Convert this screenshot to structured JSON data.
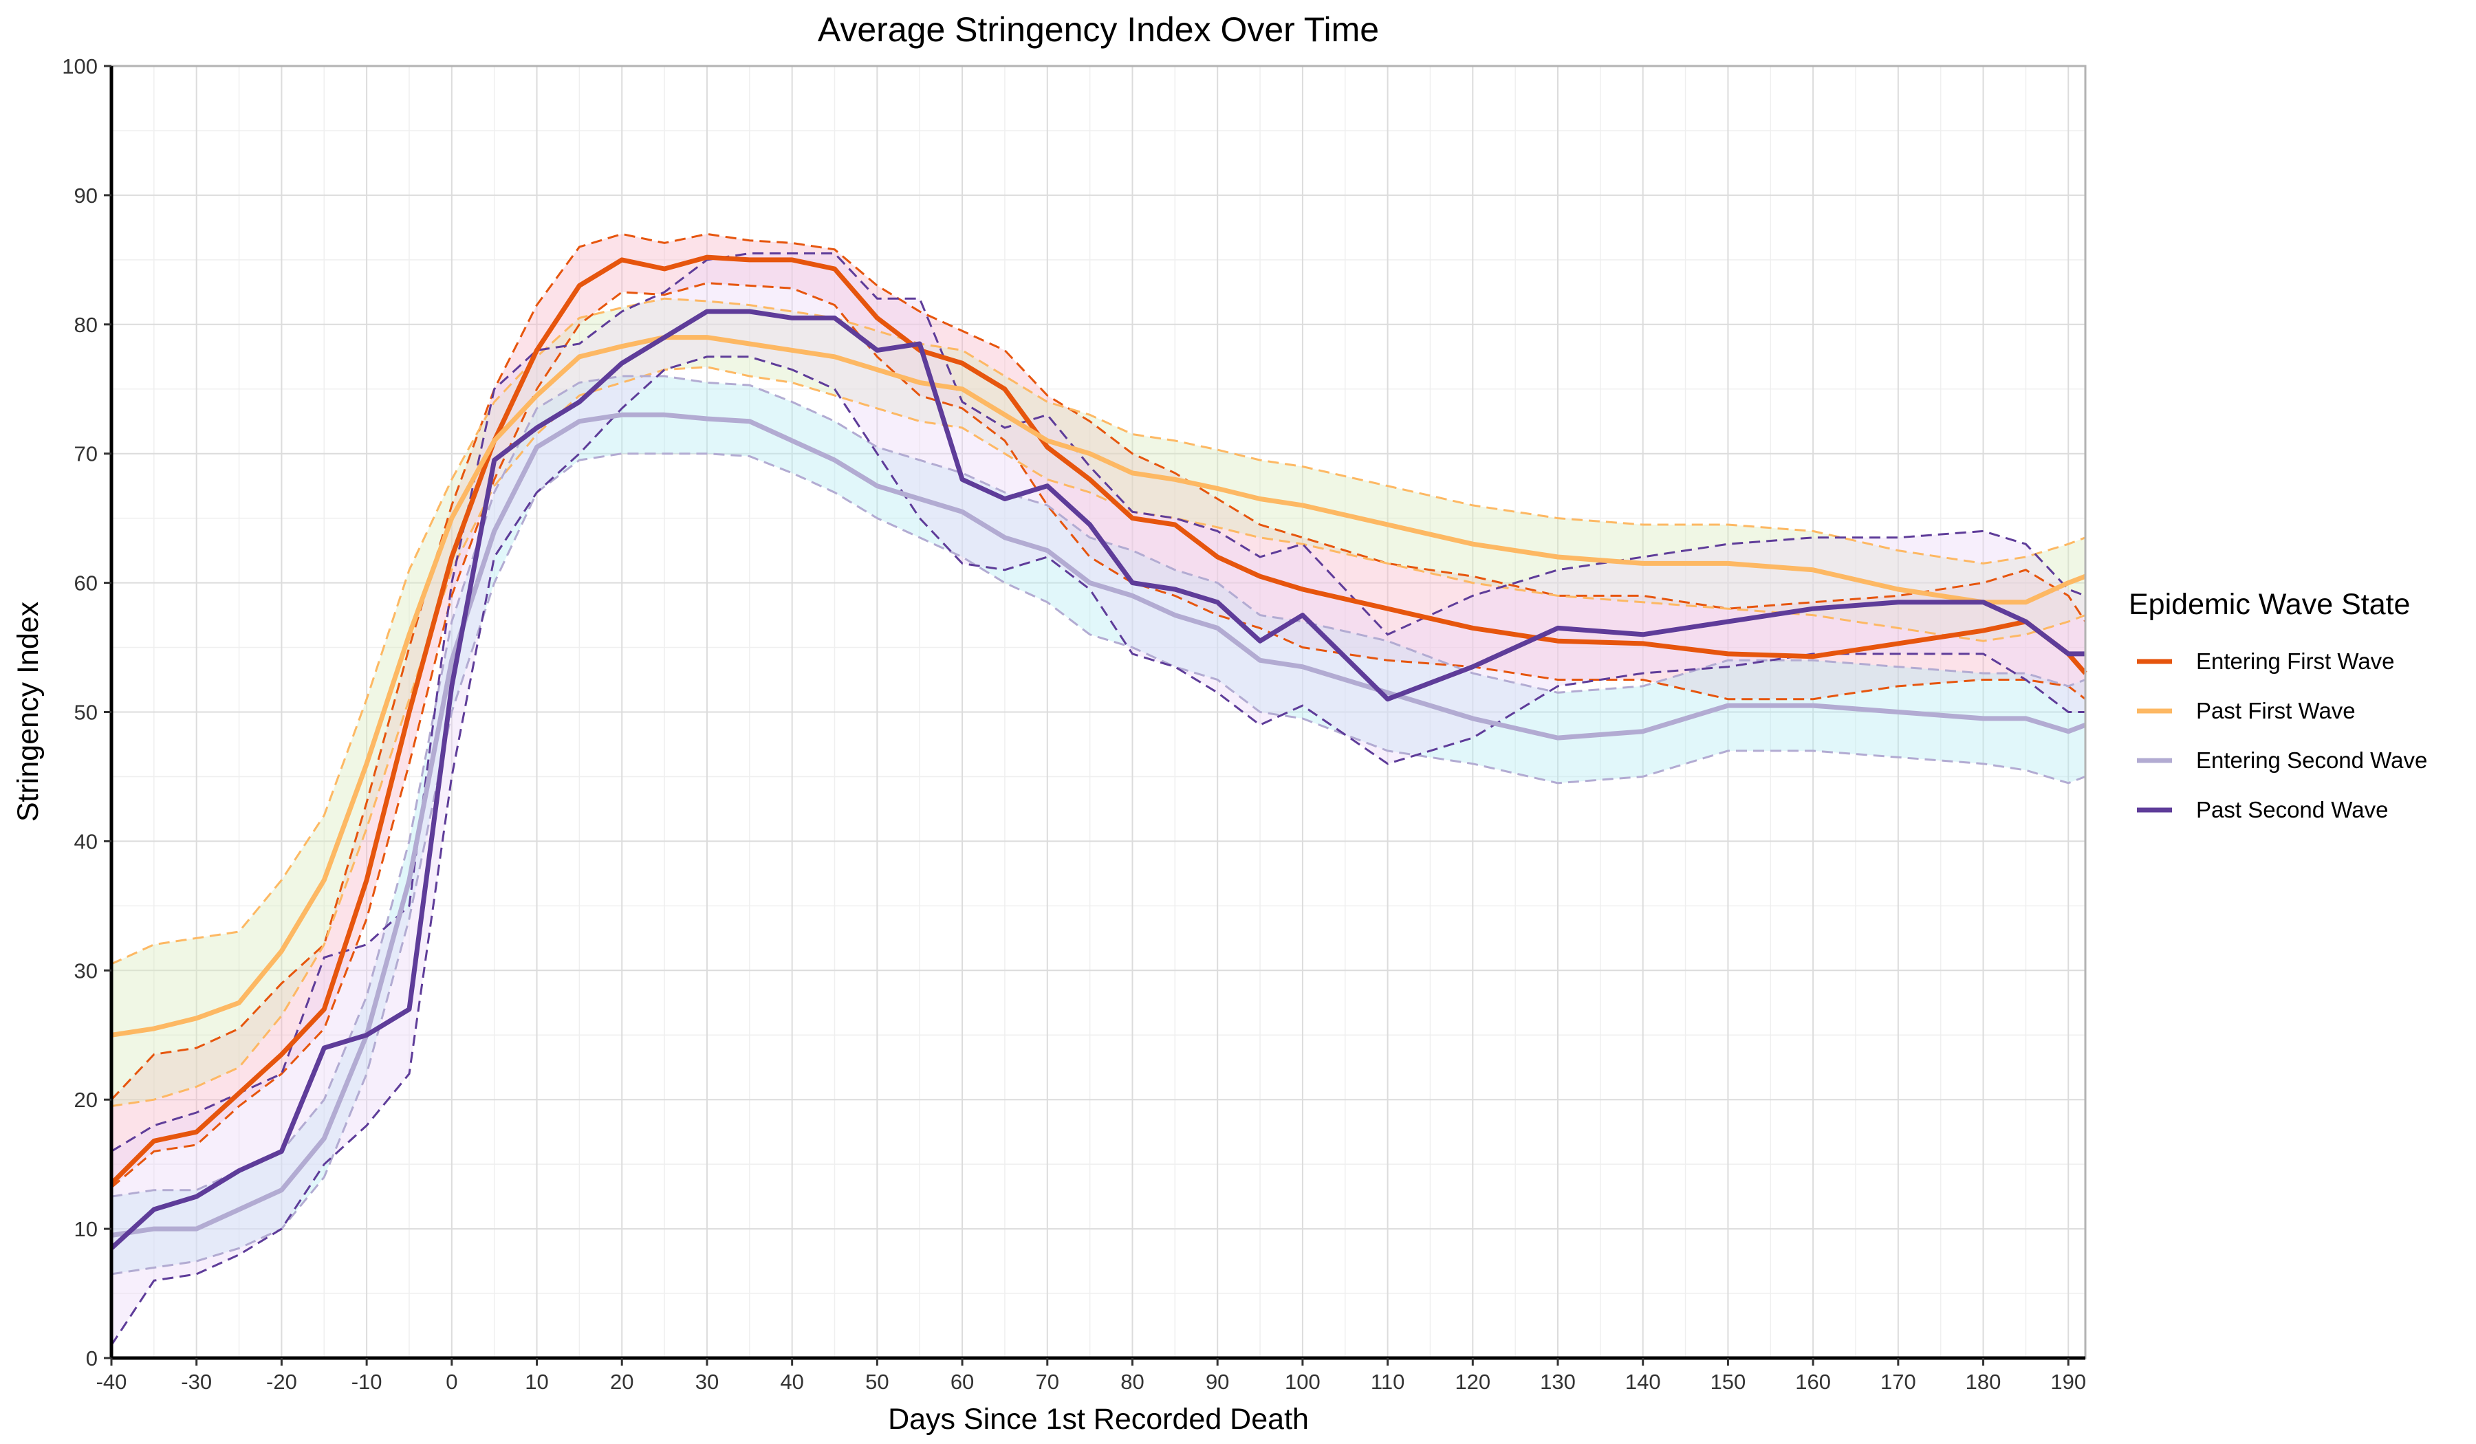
{
  "chart_data": {
    "type": "line",
    "title": "Average Stringency Index Over Time",
    "xlabel": "Days Since 1st Recorded Death",
    "ylabel": "Stringency Index",
    "xlim": [
      -40,
      192
    ],
    "ylim": [
      0,
      100
    ],
    "x_ticks": [
      -40,
      -30,
      -20,
      -10,
      0,
      10,
      20,
      30,
      40,
      50,
      60,
      70,
      80,
      90,
      100,
      110,
      120,
      130,
      140,
      150,
      160,
      170,
      180,
      190
    ],
    "y_ticks": [
      0,
      10,
      20,
      30,
      40,
      50,
      60,
      70,
      80,
      90,
      100
    ],
    "grid": true,
    "legend": {
      "title": "Epidemic Wave State",
      "position": "right"
    },
    "x": [
      -40,
      -35,
      -30,
      -25,
      -20,
      -15,
      -10,
      -5,
      0,
      5,
      10,
      15,
      20,
      25,
      30,
      35,
      40,
      45,
      50,
      55,
      60,
      65,
      70,
      75,
      80,
      85,
      90,
      95,
      100,
      110,
      120,
      130,
      140,
      150,
      160,
      170,
      180,
      185,
      190,
      192
    ],
    "series": [
      {
        "name": "Entering First Wave",
        "color": "#e6550d",
        "band_color": "#f8b7c8",
        "values": [
          13.5,
          16.8,
          17.5,
          20.5,
          23.5,
          27,
          37,
          50,
          62,
          71,
          78,
          83,
          85,
          84.3,
          85.2,
          85,
          85,
          84.3,
          80.5,
          78,
          77,
          75,
          70.5,
          68,
          65,
          64.5,
          62,
          60.5,
          59.5,
          58,
          56.5,
          55.5,
          55.3,
          54.5,
          54.3,
          55.3,
          56.3,
          57,
          54.5,
          53
        ],
        "lower": [
          13.2,
          16,
          16.5,
          19.5,
          22,
          25.5,
          34,
          46,
          59,
          68,
          75,
          80,
          82.5,
          82.3,
          83.2,
          83,
          82.8,
          81.5,
          77.5,
          74.5,
          73.5,
          71,
          66,
          62,
          60,
          59,
          57.5,
          56.5,
          55,
          54,
          53.5,
          52.5,
          52.5,
          51,
          51,
          52,
          52.5,
          52.5,
          52,
          51
        ],
        "upper": [
          20,
          23.5,
          24,
          25.5,
          29,
          32,
          43,
          55,
          66,
          75,
          81.5,
          86,
          87,
          86.3,
          87,
          86.5,
          86.3,
          85.8,
          83,
          81,
          79.5,
          78,
          74.5,
          72.5,
          70,
          68.5,
          66.5,
          64.5,
          63.5,
          61.5,
          60.5,
          59,
          59,
          58,
          58.5,
          59,
          60,
          61,
          59,
          57
        ]
      },
      {
        "name": "Past First Wave",
        "color": "#fdb863",
        "band_color": "#d9ebbd",
        "values": [
          25,
          25.5,
          26.3,
          27.5,
          31.5,
          37,
          46,
          56,
          65,
          71,
          74.5,
          77.5,
          78.3,
          79,
          79,
          78.5,
          78,
          77.5,
          76.5,
          75.5,
          75,
          73,
          71,
          70,
          68.5,
          68,
          67.3,
          66.5,
          66,
          64.5,
          63,
          62,
          61.5,
          61.5,
          61,
          59.5,
          58.5,
          58.5,
          60,
          60.5
        ],
        "lower": [
          19.5,
          20,
          21,
          22.5,
          26.5,
          32,
          41,
          51,
          61,
          67.5,
          71.5,
          74.5,
          75.5,
          76.5,
          76.7,
          76,
          75.5,
          74.5,
          73.5,
          72.5,
          72,
          70,
          68,
          67,
          65.5,
          65,
          64.3,
          63.5,
          63,
          61.5,
          60,
          59,
          58.5,
          58,
          57.5,
          56.5,
          55.5,
          56,
          57,
          57.5
        ],
        "upper": [
          30.5,
          32,
          32.5,
          33,
          37,
          42,
          51,
          61,
          68,
          74,
          77.5,
          80.5,
          81.3,
          82,
          81.8,
          81.5,
          81,
          80.5,
          79.5,
          78.5,
          78,
          76,
          74,
          73,
          71.5,
          71,
          70.3,
          69.5,
          69,
          67.5,
          66,
          65,
          64.5,
          64.5,
          64,
          62.5,
          61.5,
          62,
          63,
          63.5
        ]
      },
      {
        "name": "Entering Second Wave",
        "color": "#b2abd2",
        "band_color": "#b3ecf2",
        "values": [
          9.5,
          10,
          10,
          11.5,
          13,
          17,
          25,
          37,
          54,
          64,
          70.5,
          72.5,
          73,
          73,
          72.7,
          72.5,
          71,
          69.5,
          67.5,
          66.5,
          65.5,
          63.5,
          62.5,
          60,
          59,
          57.5,
          56.5,
          54,
          53.5,
          51.5,
          49.5,
          48,
          48.5,
          50.5,
          50.5,
          50,
          49.5,
          49.5,
          48.5,
          49
        ],
        "lower": [
          6.5,
          7,
          7.5,
          8.5,
          10,
          14,
          22,
          34,
          50,
          60,
          67,
          69.5,
          70,
          70,
          70,
          69.8,
          68.5,
          67,
          65,
          63.5,
          62,
          60,
          58.5,
          56,
          55,
          53.5,
          52.5,
          50,
          49.5,
          47,
          46,
          44.5,
          45,
          47,
          47,
          46.5,
          46,
          45.5,
          44.5,
          45
        ],
        "upper": [
          12.5,
          13,
          13,
          14.5,
          16,
          20,
          28,
          40,
          57,
          67,
          73.5,
          75.5,
          76,
          76,
          75.5,
          75.3,
          74,
          72.5,
          70.5,
          69.5,
          68.5,
          67,
          66,
          63.5,
          62.5,
          61,
          60,
          57.5,
          57,
          55.5,
          53,
          51.5,
          52,
          54,
          54,
          53.5,
          53,
          53,
          52,
          52.5
        ]
      },
      {
        "name": "Past Second Wave",
        "color": "#5e3c99",
        "band_color": "#ead8f7",
        "values": [
          8.5,
          11.5,
          12.5,
          14.5,
          16,
          24,
          25,
          27,
          52,
          69.5,
          72,
          74,
          77,
          79,
          81,
          81,
          80.5,
          80.5,
          78,
          78.5,
          68,
          66.5,
          67.5,
          64.5,
          60,
          59.5,
          58.5,
          55.5,
          57.5,
          51,
          53.5,
          56.5,
          56,
          57,
          58,
          58.5,
          58.5,
          57,
          54.5,
          54.5
        ],
        "lower": [
          1,
          6,
          6.5,
          8,
          10,
          15,
          18,
          22,
          45,
          62,
          67,
          70,
          73.5,
          76.5,
          77.5,
          77.5,
          76.5,
          75,
          70,
          65,
          61.5,
          61,
          62,
          59.5,
          54.5,
          53.5,
          51.5,
          49,
          50.5,
          46,
          48,
          52,
          53,
          53.5,
          54.5,
          54.5,
          54.5,
          52.5,
          50,
          50
        ],
        "upper": [
          16,
          18,
          19,
          20.5,
          22,
          31,
          32,
          35,
          60,
          75,
          78,
          78.5,
          81,
          82.5,
          85,
          85.5,
          85.5,
          85.5,
          82,
          82,
          74,
          72,
          73,
          69,
          65.5,
          65,
          64,
          62,
          63,
          56,
          59,
          61,
          62,
          63,
          63.5,
          63.5,
          64,
          63,
          59.5,
          59
        ]
      }
    ]
  }
}
